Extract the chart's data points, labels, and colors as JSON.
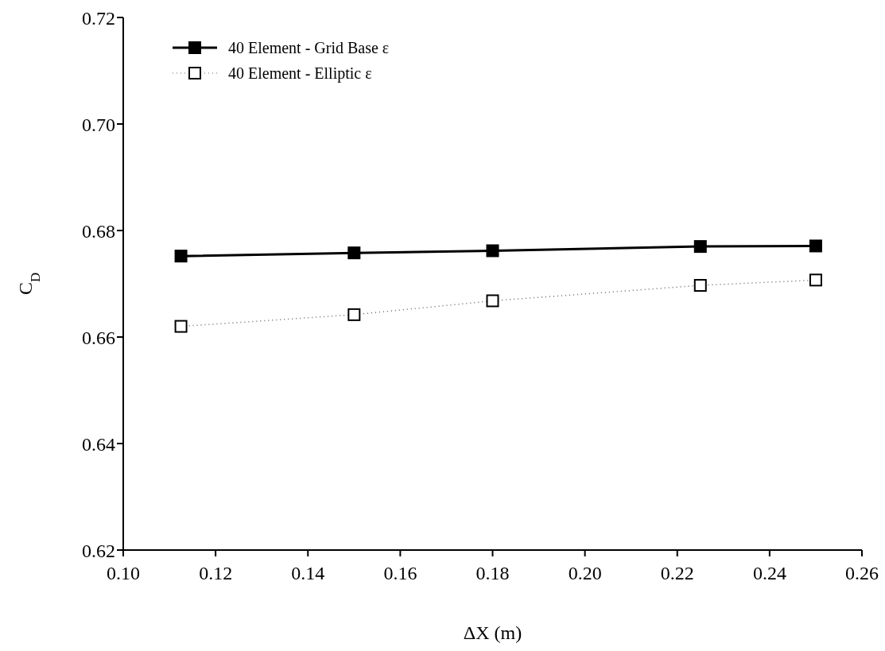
{
  "chart_data": {
    "type": "line",
    "xlabel": "ΔX (m)",
    "ylabel": "C$_{D}$",
    "x": [
      0.1125,
      0.15,
      0.18,
      0.225,
      0.25
    ],
    "series": [
      {
        "name": "40 Element - Grid Base ε",
        "color": "#000000",
        "values": [
          0.6752,
          0.6758,
          0.6762,
          0.677,
          0.6771
        ],
        "line_style": "solid"
      },
      {
        "name": "40 Element - Elliptic ε",
        "color": "#000000",
        "values": [
          0.662,
          0.6642,
          0.6668,
          0.6697,
          0.6707
        ],
        "line_style": "dotted"
      }
    ],
    "xlim": [
      0.1,
      0.26
    ],
    "xticks": [
      {
        "value": 0.1,
        "label": "0.10"
      },
      {
        "value": 0.12,
        "label": "0.12"
      },
      {
        "value": 0.14,
        "label": "0.14"
      },
      {
        "value": 0.16,
        "label": "0.16"
      },
      {
        "value": 0.18,
        "label": "0.18"
      },
      {
        "value": 0.2,
        "label": "0.20"
      },
      {
        "value": 0.22,
        "label": "0.22"
      },
      {
        "value": 0.24,
        "label": "0.24"
      },
      {
        "value": 0.26,
        "label": "0.26"
      }
    ],
    "ylim": [
      0.62,
      0.72
    ],
    "yticks": [
      {
        "value": 0.62,
        "label": "0.62"
      },
      {
        "value": 0.64,
        "label": "0.64"
      },
      {
        "value": 0.66,
        "label": "0.66"
      },
      {
        "value": 0.68,
        "label": "0.68"
      },
      {
        "value": 0.7,
        "label": "0.70"
      },
      {
        "value": 0.72,
        "label": "0.72"
      }
    ],
    "grid": false,
    "legend": "top left",
    "marker": "square"
  }
}
